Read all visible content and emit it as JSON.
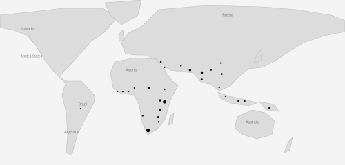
{
  "map": {
    "labels": [
      "Canada",
      "United States",
      "Russia",
      "Algeria",
      "Brazil",
      "Argentina",
      "Australia"
    ],
    "markers": [
      {
        "lon": -50,
        "lat": -12.8,
        "value": 1
      },
      {
        "lon": -9.8,
        "lat": 6,
        "value": 1
      },
      {
        "lon": -3.8,
        "lat": 6,
        "value": 1
      },
      {
        "lon": 2.3,
        "lat": 6,
        "value": 1
      },
      {
        "lon": 9,
        "lat": 9.8,
        "value": 1
      },
      {
        "lon": 25,
        "lat": 9.8,
        "value": 1
      },
      {
        "lon": 42,
        "lat": 8.3,
        "value": 1
      },
      {
        "lon": 37,
        "lat": -3.8,
        "value": 2
      },
      {
        "lon": 42,
        "lat": -5.5,
        "value": 4
      },
      {
        "lon": 37,
        "lat": -14.3,
        "value": 2
      },
      {
        "lon": 35,
        "lat": -21.6,
        "value": 1
      },
      {
        "lon": 35.6,
        "lat": -26.5,
        "value": 1
      },
      {
        "lon": 24,
        "lat": -34.5,
        "value": 5
      },
      {
        "lon": 18,
        "lat": -20.3,
        "value": 1
      },
      {
        "lon": 38,
        "lat": 36,
        "value": 1
      },
      {
        "lon": 42,
        "lat": 31,
        "value": 1
      },
      {
        "lon": 60,
        "lat": 32.5,
        "value": 1
      },
      {
        "lon": 70,
        "lat": 28.5,
        "value": 2
      },
      {
        "lon": 83,
        "lat": 26,
        "value": 2
      },
      {
        "lon": 93,
        "lat": 28.5,
        "value": 1
      },
      {
        "lon": 83,
        "lat": 19,
        "value": 1
      },
      {
        "lon": 104,
        "lat": 35,
        "value": 1
      },
      {
        "lon": 105,
        "lat": 24.5,
        "value": 1
      },
      {
        "lon": 102,
        "lat": 10.6,
        "value": 1
      },
      {
        "lon": 109,
        "lat": 0.8,
        "value": 1
      },
      {
        "lon": 123,
        "lat": -4.5,
        "value": 1
      },
      {
        "lon": 130,
        "lat": -4.5,
        "value": 1
      },
      {
        "lon": 157,
        "lat": -12,
        "value": 1
      }
    ]
  }
}
